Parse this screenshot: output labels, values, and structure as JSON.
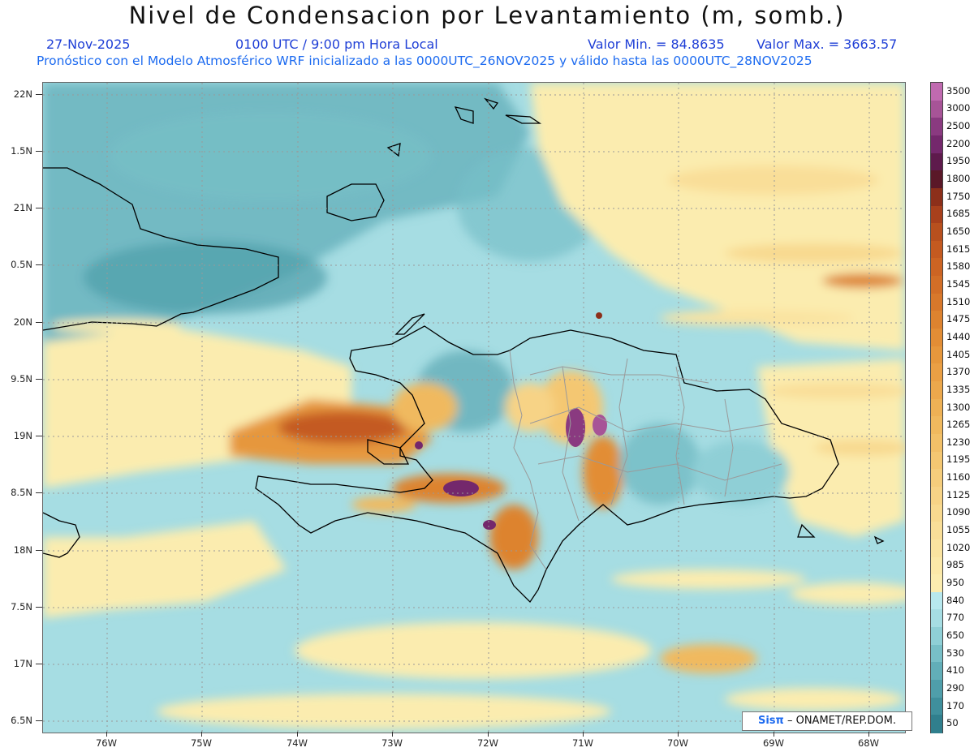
{
  "header": {
    "title": "Nivel de Condensacion por Levantamiento (m, somb.)",
    "date": "27-Nov-2025",
    "time": "0100 UTC / 9:00 pm Hora Local",
    "min_label": "Valor Min. = 84.8635",
    "max_label": "Valor Max. = 3663.57",
    "model_line": "Pronóstico con el Modelo Atmosférico WRF inicializado a las 0000UTC_26NOV2025 y válido hasta las  0000UTC_28NOV2025"
  },
  "axes": {
    "y_labels": [
      "22N",
      "1.5N",
      "21N",
      "0.5N",
      "20N",
      "9.5N",
      "19N",
      "8.5N",
      "18N",
      "7.5N",
      "17N",
      "6.5N"
    ],
    "x_labels": [
      "76W",
      "75W",
      "74W",
      "73W",
      "72W",
      "71W",
      "70W",
      "69W",
      "68W"
    ]
  },
  "colorbar": {
    "labels": [
      "3500",
      "3000",
      "2500",
      "2200",
      "1950",
      "1800",
      "1750",
      "1685",
      "1650",
      "1615",
      "1580",
      "1545",
      "1510",
      "1475",
      "1440",
      "1405",
      "1370",
      "1335",
      "1300",
      "1265",
      "1230",
      "1195",
      "1160",
      "1125",
      "1090",
      "1055",
      "1020",
      "985",
      "950",
      "840",
      "770",
      "650",
      "530",
      "410",
      "290",
      "170",
      "50"
    ],
    "colors": [
      "#c06ab0",
      "#a75497",
      "#8a3a80",
      "#74286c",
      "#5e1a4c",
      "#5a1828",
      "#8c2f1a",
      "#a8401c",
      "#b8501e",
      "#c45a20",
      "#cc6423",
      "#d26e27",
      "#d8782b",
      "#dd832f",
      "#e28d35",
      "#e6973c",
      "#ea9f44",
      "#eca84c",
      "#eeb155",
      "#f0b95e",
      "#f2c068",
      "#f4c772",
      "#f5cd7c",
      "#f7d386",
      "#f8d98f",
      "#f9de98",
      "#fae3a0",
      "#fbe8a8",
      "#fbecaf",
      "#b7e8ee",
      "#a6dde3",
      "#8fcfd6",
      "#78bfc7",
      "#62aeb8",
      "#4f9eaa",
      "#3f8f9c",
      "#307f8d"
    ]
  },
  "credit": {
    "logo": "Sisπ",
    "text": "– ONAMET/REP.DOM."
  }
}
